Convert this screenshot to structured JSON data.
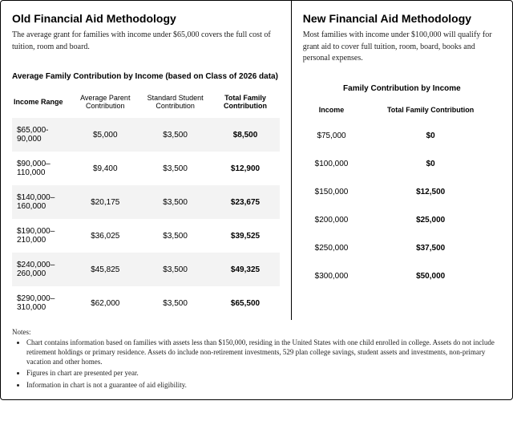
{
  "old": {
    "heading": "Old Financial Aid Methodology",
    "desc": "The average grant for families with income under $65,000 covers the full cost of tuition, room and board.",
    "subheading": "Average Family Contribution by Income (based on Class of 2026 data)",
    "columns": [
      "Income Range",
      "Average Parent Contribution",
      "Standard Student Contribution",
      "Total Family Contribution"
    ],
    "rows": [
      [
        "$65,000-90,000",
        "$5,000",
        "$3,500",
        "$8,500"
      ],
      [
        "$90,000–110,000",
        "$9,400",
        "$3,500",
        "$12,900"
      ],
      [
        "$140,000–160,000",
        "$20,175",
        "$3,500",
        "$23,675"
      ],
      [
        "$190,000–210,000",
        "$36,025",
        "$3,500",
        "$39,525"
      ],
      [
        "$240,000–260,000",
        "$45,825",
        "$3,500",
        "$49,325"
      ],
      [
        "$290,000–310,000",
        "$62,000",
        "$3,500",
        "$65,500"
      ]
    ]
  },
  "new": {
    "heading": "New Financial Aid Methodology",
    "desc": "Most families with income under $100,000 will qualify for grant aid to cover full tuition, room, board, books and personal expenses.",
    "subheading": "Family Contribution by Income",
    "columns": [
      "Income",
      "Total Family Contribution"
    ],
    "rows": [
      [
        "$75,000",
        "$0"
      ],
      [
        "$100,000",
        "$0"
      ],
      [
        "$150,000",
        "$12,500"
      ],
      [
        "$200,000",
        "$25,000"
      ],
      [
        "$250,000",
        "$37,500"
      ],
      [
        "$300,000",
        "$50,000"
      ]
    ]
  },
  "notes": {
    "title": "Notes:",
    "items": [
      "Chart contains information based on families with assets less than $150,000, residing in the United States with one child enrolled in college. Assets do not include retirement holdings or primary residence. Assets do include non-retirement investments, 529 plan college savings, student assets and investments, non-primary vacation and other homes.",
      "Figures in chart are presented per year.",
      "Information in chart is not a guarantee of aid eligibility."
    ]
  }
}
